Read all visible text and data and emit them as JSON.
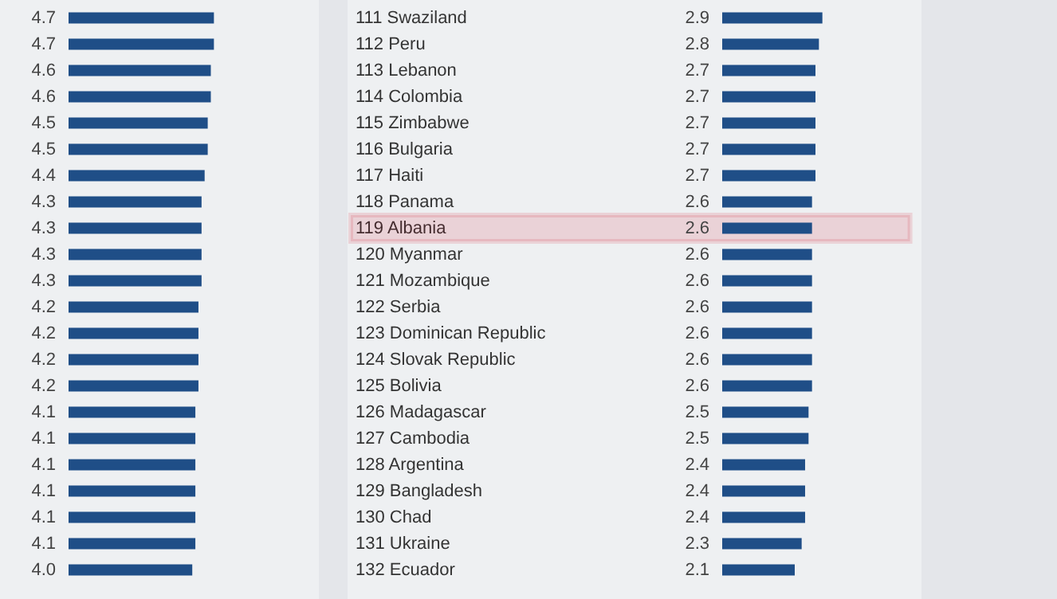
{
  "chart_data": [
    {
      "type": "bar",
      "orientation": "horizontal",
      "color": "#1f4e87",
      "value_labels": [
        "4.7",
        "4.7",
        "4.6",
        "4.6",
        "4.5",
        "4.5",
        "4.4",
        "4.3",
        "4.3",
        "4.3",
        "4.3",
        "4.2",
        "4.2",
        "4.2",
        "4.2",
        "4.1",
        "4.1",
        "4.1",
        "4.1",
        "4.1",
        "4.1",
        "4.0"
      ],
      "categories": [
        null,
        null,
        null,
        null,
        null,
        null,
        null,
        null,
        null,
        null,
        null,
        null,
        null,
        null,
        null,
        null,
        null,
        null,
        null,
        null,
        null,
        null
      ],
      "values": [
        4.7,
        4.7,
        4.6,
        4.6,
        4.5,
        4.5,
        4.4,
        4.3,
        4.3,
        4.3,
        4.3,
        4.2,
        4.2,
        4.2,
        4.2,
        4.1,
        4.1,
        4.1,
        4.1,
        4.1,
        4.1,
        4.0
      ]
    },
    {
      "type": "bar",
      "orientation": "horizontal",
      "data_labels": true,
      "color": "#1f4e87",
      "categories": [
        "111 Swaziland",
        "112 Peru",
        "113 Lebanon",
        "114 Colombia",
        "115 Zimbabwe",
        "116 Bulgaria",
        "117 Haiti",
        "118 Panama",
        "119 Albania",
        "120 Myanmar",
        "121 Mozambique",
        "122 Serbia",
        "123 Dominican Republic",
        "124 Slovak Republic",
        "125 Bolivia",
        "126 Madagascar",
        "127 Cambodia",
        "128 Argentina",
        "129 Bangladesh",
        "130 Chad",
        "131 Ukraine",
        "132 Ecuador"
      ],
      "values": [
        2.9,
        2.8,
        2.7,
        2.7,
        2.7,
        2.7,
        2.7,
        2.6,
        2.6,
        2.6,
        2.6,
        2.6,
        2.6,
        2.6,
        2.6,
        2.5,
        2.5,
        2.4,
        2.4,
        2.4,
        2.3,
        2.1
      ],
      "bands": [
        {
          "axis": "y",
          "from": "119 Albania",
          "to": "119 Albania",
          "color": "#d0021b"
        }
      ]
    }
  ]
}
